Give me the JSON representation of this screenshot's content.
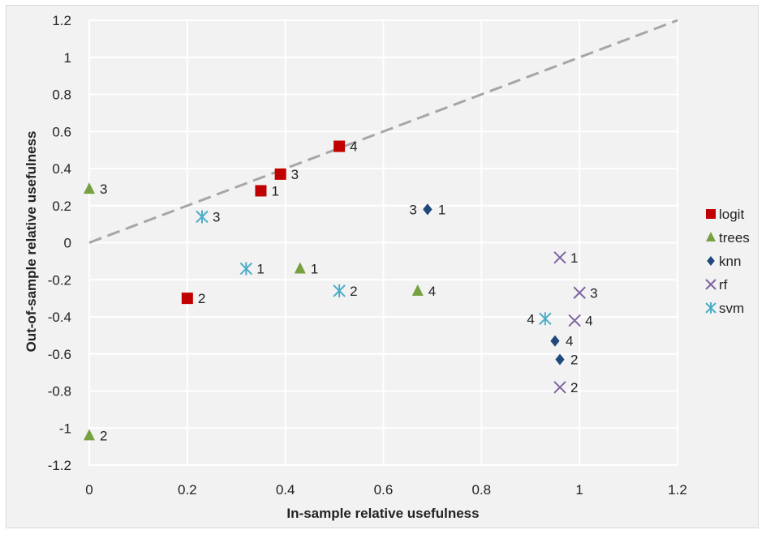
{
  "chart_data": {
    "type": "scatter",
    "title": "",
    "xlabel": "In-sample relative usefulness",
    "ylabel": "Out-of-sample relative usefulness",
    "xlim": [
      0,
      1.2
    ],
    "ylim": [
      -1.2,
      1.2
    ],
    "x_ticks": [
      0,
      0.2,
      0.4,
      0.6,
      0.8,
      1,
      1.2
    ],
    "y_ticks": [
      -1.2,
      -1,
      -0.8,
      -0.6,
      -0.4,
      -0.2,
      0,
      0.2,
      0.4,
      0.6,
      0.8,
      1,
      1.2
    ],
    "x_tick_labels": [
      "0",
      "0.2",
      "0.4",
      "0.6",
      "0.8",
      "1",
      "1.2"
    ],
    "y_tick_labels": [
      "-1.2",
      "-1",
      "-0.8",
      "-0.6",
      "-0.4",
      "-0.2",
      "0",
      "0.2",
      "0.4",
      "0.6",
      "0.8",
      "1",
      "1.2"
    ],
    "grid": true,
    "legend_position": "right",
    "reference_line": {
      "from": [
        0,
        0
      ],
      "to": [
        1.2,
        1.2
      ],
      "style": "dashed",
      "color": "#a6a6a6"
    },
    "series": [
      {
        "name": "logit",
        "marker": "square",
        "color": "#c00000",
        "points": [
          {
            "x": 0.35,
            "y": 0.28,
            "label": "1",
            "label_side": "right"
          },
          {
            "x": 0.2,
            "y": -0.3,
            "label": "2",
            "label_side": "right"
          },
          {
            "x": 0.39,
            "y": 0.37,
            "label": "3",
            "label_side": "right"
          },
          {
            "x": 0.51,
            "y": 0.52,
            "label": "4",
            "label_side": "right"
          }
        ]
      },
      {
        "name": "trees",
        "marker": "triangle",
        "color": "#77a040",
        "points": [
          {
            "x": 0.43,
            "y": -0.14,
            "label": "1",
            "label_side": "right"
          },
          {
            "x": 0.0,
            "y": -1.04,
            "label": "2",
            "label_side": "right"
          },
          {
            "x": 0.0,
            "y": 0.29,
            "label": "3",
            "label_side": "right"
          },
          {
            "x": 0.67,
            "y": -0.26,
            "label": "4",
            "label_side": "right"
          }
        ]
      },
      {
        "name": "knn",
        "marker": "diamond",
        "color": "#1f497d",
        "points": [
          {
            "x": 0.69,
            "y": 0.18,
            "label": "1",
            "label_side": "right"
          },
          {
            "x": 0.96,
            "y": -0.63,
            "label": "2",
            "label_side": "right"
          },
          {
            "x": 0.69,
            "y": 0.18,
            "label": "3",
            "label_side": "left"
          },
          {
            "x": 0.95,
            "y": -0.53,
            "label": "4",
            "label_side": "right"
          }
        ]
      },
      {
        "name": "rf",
        "marker": "x",
        "color": "#8064a2",
        "points": [
          {
            "x": 0.96,
            "y": -0.08,
            "label": "1",
            "label_side": "right"
          },
          {
            "x": 0.96,
            "y": -0.78,
            "label": "2",
            "label_side": "right"
          },
          {
            "x": 1.0,
            "y": -0.27,
            "label": "3",
            "label_side": "right"
          },
          {
            "x": 0.99,
            "y": -0.42,
            "label": "4",
            "label_side": "right"
          }
        ]
      },
      {
        "name": "svm",
        "marker": "star",
        "color": "#4bacc6",
        "points": [
          {
            "x": 0.32,
            "y": -0.14,
            "label": "1",
            "label_side": "right"
          },
          {
            "x": 0.51,
            "y": -0.26,
            "label": "2",
            "label_side": "right"
          },
          {
            "x": 0.23,
            "y": 0.14,
            "label": "3",
            "label_side": "right"
          },
          {
            "x": 0.93,
            "y": -0.41,
            "label": "4",
            "label_side": "left"
          }
        ]
      }
    ]
  }
}
